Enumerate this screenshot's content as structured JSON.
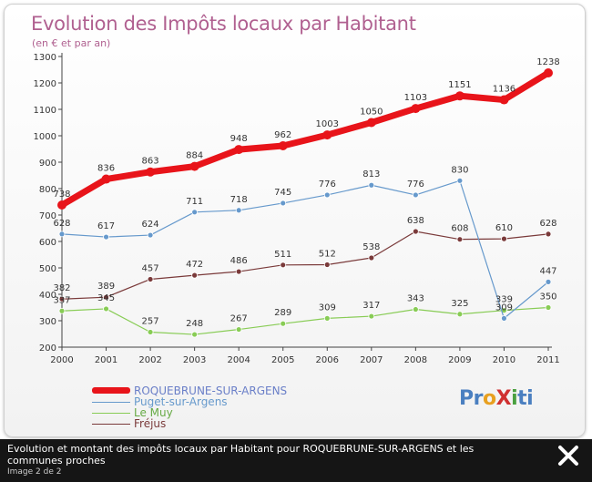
{
  "chart_data": {
    "type": "line",
    "title": "Evolution des Impôts locaux par Habitant",
    "subtitle": "(en € et par an)",
    "categories": [
      "2000",
      "2001",
      "2002",
      "2003",
      "2004",
      "2005",
      "2006",
      "2007",
      "2008",
      "2009",
      "2010",
      "2011"
    ],
    "yticks": [
      200,
      300,
      400,
      500,
      600,
      700,
      800,
      900,
      1000,
      1100,
      1200,
      1300
    ],
    "ylim": [
      200,
      1300
    ],
    "grid": false,
    "legend_position": "bottom-left",
    "series": [
      {
        "name": "ROQUEBRUNE-SUR-ARGENS",
        "color": "#e8141a",
        "values": [
          738,
          836,
          863,
          884,
          948,
          962,
          1003,
          1050,
          1103,
          1151,
          1136,
          1238
        ],
        "labels": [
          "738",
          "836",
          "863",
          "884",
          "948",
          "962",
          "1003",
          "1050",
          "1103",
          "1151",
          "1136",
          "1238"
        ]
      },
      {
        "name": "Puget-sur-Argens",
        "color": "#6699cc",
        "values": [
          628,
          617,
          624,
          711,
          718,
          745,
          776,
          813,
          776,
          830,
          309,
          447
        ],
        "labels": [
          "628",
          "617",
          "624",
          "711",
          "718",
          "745",
          "776",
          "813",
          "776",
          "830",
          "309",
          "447"
        ]
      },
      {
        "name": "Le Muy",
        "color": "#88cc55",
        "values": [
          337,
          345,
          257,
          248,
          267,
          289,
          309,
          317,
          343,
          325,
          339,
          350
        ],
        "labels": [
          "337",
          "345",
          "257",
          "248",
          "267",
          "289",
          "309",
          "317",
          "343",
          "325",
          "339",
          "350"
        ]
      },
      {
        "name": "Fréjus",
        "color": "#7a3a3a",
        "values": [
          382,
          389,
          457,
          472,
          486,
          511,
          512,
          538,
          638,
          608,
          610,
          628
        ],
        "labels": [
          "382",
          "389",
          "457",
          "472",
          "486",
          "511",
          "512",
          "538",
          "638",
          "608",
          "610",
          "628"
        ]
      }
    ]
  },
  "logo": {
    "parts": [
      "Pr",
      "o",
      "X",
      "i",
      "ti"
    ],
    "colors": [
      "#4a7fc0",
      "#e8a020",
      "#d03030",
      "#4aa040",
      "#4a7fc0"
    ]
  },
  "caption": {
    "text": "Evolution et montant des impôts locaux par Habitant pour ROQUEBRUNE-SUR-ARGENS et les communes proches",
    "counter": "Image 2 de 2"
  }
}
